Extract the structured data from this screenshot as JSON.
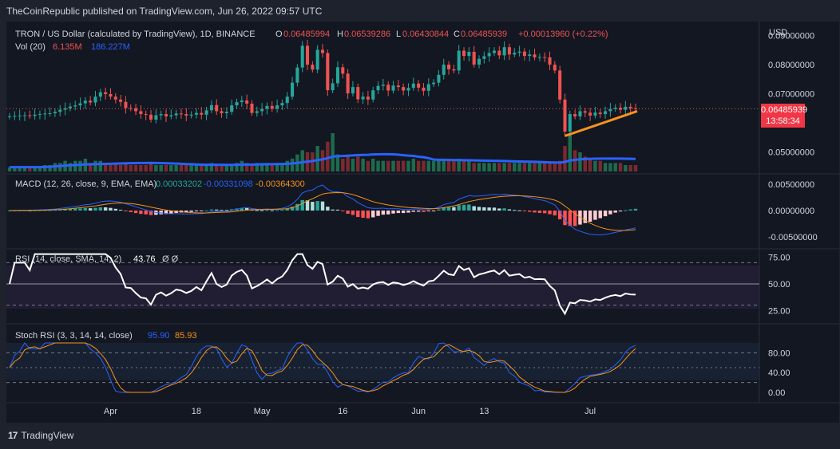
{
  "header": {
    "published": "TheCoinRepublic published on TradingView.com, Jun 26, 2022 09:57 UTC"
  },
  "main": {
    "symbol": "TRON / US Dollar (calculated by TradingView), 1D, BINANCE",
    "o_label": "O",
    "o": "0.06485994",
    "h_label": "H",
    "h": "0.06539286",
    "l_label": "L",
    "l": "0.06430844",
    "c_label": "C",
    "c": "0.06485939",
    "change": "+0.00013960 (+0.22%)",
    "vol_label": "Vol (20)",
    "vol_a": "6.135M",
    "vol_b": "186.227M",
    "currency": "USD",
    "last_price": "0.06485939",
    "countdown": "13:58:34",
    "yticks": [
      "0.09000000",
      "0.08000000",
      "0.07000000",
      "0.05000000"
    ]
  },
  "macd": {
    "label": "MACD (12, 26, close, 9, EMA, EMA)",
    "v1": "0.00033202",
    "v2": "-0.00331098",
    "v3": "-0.00364300",
    "yticks": [
      "0.00500000",
      "0.00000000",
      "-0.00500000"
    ]
  },
  "rsi": {
    "label": "RSI (14, close, SMA, 14, 2)",
    "value": "43.76",
    "extra": "Ø  Ø",
    "yticks": [
      "75.00",
      "50.00",
      "25.00"
    ]
  },
  "stoch": {
    "label": "Stoch RSI (3, 3, 14, 14, close)",
    "k": "95.90",
    "d": "85.93",
    "yticks": [
      "80.00",
      "40.00",
      "0.00"
    ]
  },
  "xaxis": [
    "Apr",
    "18",
    "May",
    "16",
    "Jun",
    "13",
    "Jul"
  ],
  "footer": {
    "brand": "TradingView"
  },
  "colors": {
    "up": "#26a69a",
    "down": "#ef5350",
    "orange": "#f7931a",
    "blue": "#2962ff"
  },
  "chart_data": {
    "type": "candlestick",
    "title": "TRON / US Dollar, 1D, BINANCE",
    "ylim": [
      0.043,
      0.094
    ],
    "closes": [
      0.0622,
      0.0624,
      0.0625,
      0.0626,
      0.0624,
      0.0628,
      0.063,
      0.0632,
      0.0633,
      0.0638,
      0.0645,
      0.065,
      0.0656,
      0.066,
      0.0667,
      0.0676,
      0.067,
      0.069,
      0.0705,
      0.0699,
      0.069,
      0.068,
      0.0672,
      0.0651,
      0.065,
      0.064,
      0.063,
      0.0628,
      0.0611,
      0.0626,
      0.063,
      0.0622,
      0.0626,
      0.0632,
      0.063,
      0.0625,
      0.0628,
      0.0634,
      0.0628,
      0.0643,
      0.0661,
      0.064,
      0.0633,
      0.0638,
      0.066,
      0.0671,
      0.0677,
      0.0666,
      0.0634,
      0.064,
      0.0648,
      0.0658,
      0.0648,
      0.066,
      0.0668,
      0.069,
      0.0738,
      0.079,
      0.0865,
      0.08,
      0.0783,
      0.0851,
      0.084,
      0.0712,
      0.0736,
      0.0791,
      0.0769,
      0.0701,
      0.0723,
      0.0681,
      0.069,
      0.068,
      0.0712,
      0.0727,
      0.0731,
      0.0711,
      0.0728,
      0.0723,
      0.0711,
      0.072,
      0.0735,
      0.0721,
      0.071,
      0.0733,
      0.0738,
      0.0765,
      0.08,
      0.0784,
      0.078,
      0.0848,
      0.083,
      0.0844,
      0.08,
      0.082,
      0.0829,
      0.084,
      0.0848,
      0.0832,
      0.086,
      0.0835,
      0.0841,
      0.0845,
      0.083,
      0.0835,
      0.0825,
      0.0826,
      0.0825,
      0.08,
      0.078,
      0.068,
      0.057,
      0.063,
      0.0622,
      0.064,
      0.0635,
      0.0625,
      0.0635,
      0.063,
      0.064,
      0.0648,
      0.0652,
      0.0645,
      0.0655,
      0.065,
      0.0649
    ],
    "volume": [
      2,
      2,
      2,
      2,
      2,
      2,
      2,
      3,
      3,
      4,
      4,
      5,
      4,
      5,
      5,
      6,
      4,
      5,
      5,
      4,
      3,
      4,
      3,
      4,
      3,
      3,
      3,
      3,
      4,
      3,
      3,
      3,
      3,
      3,
      3,
      3,
      3,
      3,
      3,
      3,
      4,
      3,
      3,
      3,
      3,
      4,
      5,
      4,
      3,
      4,
      4,
      4,
      3,
      4,
      4,
      5,
      6,
      8,
      10,
      9,
      9,
      12,
      10,
      14,
      18,
      8,
      6,
      7,
      6,
      7,
      6,
      5,
      6,
      5,
      5,
      5,
      5,
      5,
      5,
      5,
      6,
      5,
      5,
      5,
      5,
      6,
      6,
      6,
      5,
      6,
      5,
      5,
      4,
      4,
      4,
      4,
      4,
      4,
      4,
      4,
      4,
      4,
      4,
      4,
      4,
      4,
      4,
      4,
      4,
      5,
      12,
      18,
      10,
      9,
      7,
      6,
      5,
      5,
      4,
      4,
      4,
      4,
      3,
      3,
      3
    ],
    "xticks": [
      "Apr",
      "18",
      "May",
      "16",
      "Jun",
      "13",
      "Jul"
    ],
    "last": 0.06485939
  }
}
